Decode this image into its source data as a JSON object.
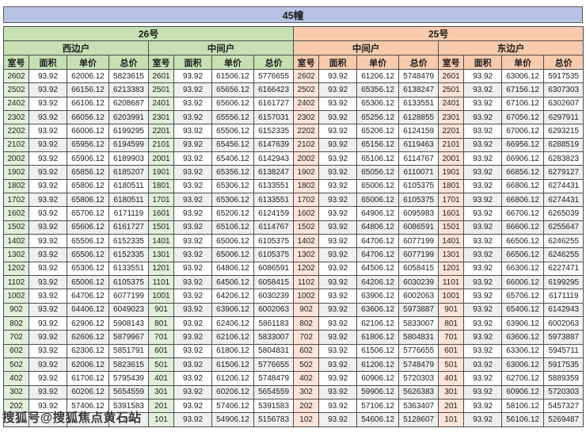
{
  "title": "45幢",
  "watermark": "搜狐号@搜狐焦点黄石站",
  "colors": {
    "title_bar": "#b7c3e5",
    "green_header": "#c6e0b4",
    "green_room": "#e2efda",
    "orange_header": "#f8cbad",
    "orange_room": "#fce4d6",
    "alt_row": "#efefef",
    "border": "#4d4d4d"
  },
  "table": {
    "buildings": [
      {
        "label": "26号",
        "theme": "green",
        "span": 8
      },
      {
        "label": "25号",
        "theme": "orange",
        "span": 8
      }
    ],
    "columns": [
      "室号",
      "面积",
      "单价",
      "总价"
    ],
    "groups": [
      {
        "building": "26号",
        "side": "西边户",
        "theme": "green",
        "rows": [
          [
            "2602",
            "93.92",
            "62006.12",
            "5823615"
          ],
          [
            "2502",
            "93.92",
            "66156.12",
            "6213383"
          ],
          [
            "2402",
            "93.92",
            "66106.12",
            "6208687"
          ],
          [
            "2302",
            "93.92",
            "66056.12",
            "6203991"
          ],
          [
            "2202",
            "93.92",
            "66006.12",
            "6199295"
          ],
          [
            "2102",
            "93.92",
            "65956.12",
            "6194599"
          ],
          [
            "2002",
            "93.92",
            "65906.12",
            "6189903"
          ],
          [
            "1902",
            "93.92",
            "65856.12",
            "6185207"
          ],
          [
            "1802",
            "93.92",
            "65806.12",
            "6180511"
          ],
          [
            "1702",
            "93.92",
            "65806.12",
            "6180511"
          ],
          [
            "1602",
            "93.92",
            "65706.12",
            "6171119"
          ],
          [
            "1502",
            "93.92",
            "65606.12",
            "6161727"
          ],
          [
            "1402",
            "93.92",
            "65506.12",
            "6152335"
          ],
          [
            "1302",
            "93.92",
            "65506.12",
            "6152335"
          ],
          [
            "1202",
            "93.92",
            "65306.12",
            "6133551"
          ],
          [
            "1102",
            "93.92",
            "65006.12",
            "6105375"
          ],
          [
            "1002",
            "93.92",
            "64706.12",
            "6077199"
          ],
          [
            "902",
            "93.92",
            "64406.12",
            "6049023"
          ],
          [
            "802",
            "93.92",
            "62906.12",
            "5908143"
          ],
          [
            "702",
            "93.92",
            "62606.12",
            "5879967"
          ],
          [
            "602",
            "93.92",
            "62306.12",
            "5851791"
          ],
          [
            "502",
            "93.92",
            "62006.12",
            "5823615"
          ],
          [
            "402",
            "93.92",
            "61706.12",
            "5795439"
          ],
          [
            "302",
            "93.92",
            "60206.12",
            "5654559"
          ],
          [
            "202",
            "93.92",
            "57406.12",
            "5391583"
          ],
          [
            "",
            "",
            "",
            "743"
          ]
        ]
      },
      {
        "building": "26号",
        "side": "中间户",
        "theme": "green",
        "rows": [
          [
            "2601",
            "93.92",
            "61506.12",
            "5776655"
          ],
          [
            "2501",
            "93.92",
            "65656.12",
            "6166423"
          ],
          [
            "2401",
            "93.92",
            "65606.12",
            "6161727"
          ],
          [
            "2301",
            "93.92",
            "65556.12",
            "6157031"
          ],
          [
            "2201",
            "93.92",
            "65506.12",
            "6152335"
          ],
          [
            "2101",
            "93.92",
            "65456.12",
            "6147639"
          ],
          [
            "2001",
            "93.92",
            "65406.12",
            "6142943"
          ],
          [
            "1901",
            "93.92",
            "65356.12",
            "6138247"
          ],
          [
            "1801",
            "93.92",
            "65306.12",
            "6133551"
          ],
          [
            "1701",
            "93.92",
            "65306.12",
            "6133551"
          ],
          [
            "1601",
            "93.92",
            "65206.12",
            "6124159"
          ],
          [
            "1501",
            "93.92",
            "65106.12",
            "6114767"
          ],
          [
            "1401",
            "93.92",
            "65006.12",
            "6105375"
          ],
          [
            "1301",
            "93.92",
            "65006.12",
            "6105375"
          ],
          [
            "1201",
            "93.92",
            "64806.12",
            "6086591"
          ],
          [
            "1101",
            "93.92",
            "64506.12",
            "6058415"
          ],
          [
            "1001",
            "93.92",
            "64206.12",
            "6030239"
          ],
          [
            "901",
            "93.92",
            "63906.12",
            "6002063"
          ],
          [
            "801",
            "93.92",
            "62406.12",
            "5861183"
          ],
          [
            "701",
            "93.92",
            "62106.12",
            "5833007"
          ],
          [
            "601",
            "93.92",
            "61806.12",
            "5804831"
          ],
          [
            "501",
            "93.92",
            "61506.12",
            "5776655"
          ],
          [
            "401",
            "93.92",
            "61206.12",
            "5748479"
          ],
          [
            "301",
            "93.92",
            "60206.12",
            "5654559"
          ],
          [
            "201",
            "93.92",
            "57406.12",
            "5391583"
          ],
          [
            "101",
            "93.92",
            "54906.12",
            "5156783"
          ]
        ]
      },
      {
        "building": "25号",
        "side": "中间户",
        "theme": "orange",
        "rows": [
          [
            "2602",
            "93.92",
            "61206.12",
            "5748479"
          ],
          [
            "2502",
            "93.92",
            "65356.12",
            "6138247"
          ],
          [
            "2402",
            "93.92",
            "65306.12",
            "6133551"
          ],
          [
            "2302",
            "93.92",
            "65256.12",
            "6128855"
          ],
          [
            "2202",
            "93.92",
            "65206.12",
            "6124159"
          ],
          [
            "2102",
            "93.92",
            "65156.12",
            "6119463"
          ],
          [
            "2002",
            "93.92",
            "65106.12",
            "6114767"
          ],
          [
            "1902",
            "93.92",
            "65056.12",
            "6110071"
          ],
          [
            "1802",
            "93.92",
            "65006.12",
            "6105375"
          ],
          [
            "1702",
            "93.92",
            "65006.12",
            "6105375"
          ],
          [
            "1602",
            "93.92",
            "64906.12",
            "6095983"
          ],
          [
            "1502",
            "93.92",
            "64806.12",
            "6086591"
          ],
          [
            "1402",
            "93.92",
            "64706.12",
            "6077199"
          ],
          [
            "1302",
            "93.92",
            "64706.12",
            "6077199"
          ],
          [
            "1202",
            "93.92",
            "64506.12",
            "6058415"
          ],
          [
            "1102",
            "93.92",
            "64206.12",
            "6030239"
          ],
          [
            "1002",
            "93.92",
            "63906.12",
            "6002063"
          ],
          [
            "902",
            "93.92",
            "63606.12",
            "5973887"
          ],
          [
            "802",
            "93.92",
            "62106.12",
            "5833007"
          ],
          [
            "702",
            "93.92",
            "61806.12",
            "5804831"
          ],
          [
            "602",
            "93.92",
            "61506.12",
            "5776655"
          ],
          [
            "502",
            "93.92",
            "61206.12",
            "5748479"
          ],
          [
            "402",
            "93.92",
            "60906.12",
            "5720303"
          ],
          [
            "302",
            "93.92",
            "59906.12",
            "5626383"
          ],
          [
            "202",
            "93.92",
            "57106.12",
            "5363407"
          ],
          [
            "102",
            "93.92",
            "54606.12",
            "5128607"
          ]
        ]
      },
      {
        "building": "25号",
        "side": "东边户",
        "theme": "orange",
        "rows": [
          [
            "2601",
            "93.92",
            "63006.12",
            "5917535"
          ],
          [
            "2501",
            "93.92",
            "67156.12",
            "6307303"
          ],
          [
            "2401",
            "93.92",
            "67106.12",
            "6302607"
          ],
          [
            "2301",
            "93.92",
            "67056.12",
            "6297911"
          ],
          [
            "2201",
            "93.92",
            "67006.12",
            "6293215"
          ],
          [
            "2101",
            "93.92",
            "66956.12",
            "6288519"
          ],
          [
            "2001",
            "93.92",
            "66906.12",
            "6283823"
          ],
          [
            "1901",
            "93.92",
            "66856.12",
            "6279127"
          ],
          [
            "1801",
            "93.92",
            "66806.12",
            "6274431"
          ],
          [
            "1701",
            "93.92",
            "66806.12",
            "6274431"
          ],
          [
            "1601",
            "93.92",
            "66706.12",
            "6265039"
          ],
          [
            "1501",
            "93.92",
            "66606.12",
            "6255647"
          ],
          [
            "1401",
            "93.92",
            "66506.12",
            "6246255"
          ],
          [
            "1301",
            "93.92",
            "66506.12",
            "6246255"
          ],
          [
            "1201",
            "93.92",
            "66306.12",
            "6227471"
          ],
          [
            "1101",
            "93.92",
            "66006.12",
            "6199295"
          ],
          [
            "1001",
            "93.92",
            "65706.12",
            "6171119"
          ],
          [
            "901",
            "93.92",
            "65406.12",
            "6142943"
          ],
          [
            "801",
            "93.92",
            "63906.12",
            "6002063"
          ],
          [
            "701",
            "93.92",
            "63606.12",
            "5973887"
          ],
          [
            "601",
            "93.92",
            "63306.12",
            "5945711"
          ],
          [
            "501",
            "93.92",
            "63006.12",
            "5917535"
          ],
          [
            "401",
            "93.92",
            "62706.12",
            "5889359"
          ],
          [
            "301",
            "93.92",
            "60906.12",
            "5720303"
          ],
          [
            "201",
            "93.92",
            "58106.12",
            "5457327"
          ],
          [
            "101",
            "93.92",
            "56106.12",
            "5269487"
          ]
        ]
      }
    ]
  }
}
